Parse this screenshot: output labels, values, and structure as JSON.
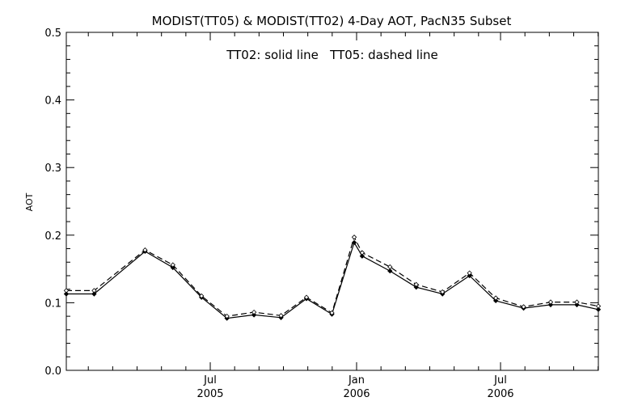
{
  "chart_data": {
    "type": "line",
    "title": "MODIST(TT05) & MODIST(TT02) 4-Day AOT, PacN35 Subset",
    "annotation": "TT02: solid line   TT05: dashed line",
    "ylabel": "AOT",
    "xlabel": "",
    "ylim": [
      0,
      0.5
    ],
    "yticks": [
      "0.0",
      "0.1",
      "0.2",
      "0.3",
      "0.4",
      "0.5"
    ],
    "xlim": [
      "2005-01-01",
      "2006-11-01"
    ],
    "xticks": [
      {
        "date": "2005-07-01",
        "label1": "Jul",
        "label2": "2005"
      },
      {
        "date": "2006-01-01",
        "label1": "Jan",
        "label2": "2006"
      },
      {
        "date": "2006-07-01",
        "label1": "Jul",
        "label2": "2006"
      }
    ],
    "grid": false,
    "series": [
      {
        "name": "TT02",
        "style": "solid",
        "x": [
          "2005-01-01",
          "2005-02-05",
          "2005-04-10",
          "2005-05-15",
          "2005-06-20",
          "2005-07-22",
          "2005-08-25",
          "2005-09-28",
          "2005-10-30",
          "2005-12-01",
          "2005-12-29",
          "2006-01-08",
          "2006-02-12",
          "2006-03-17",
          "2006-04-19",
          "2006-05-23",
          "2006-06-25",
          "2006-07-30",
          "2006-09-02",
          "2006-10-05",
          "2006-11-01"
        ],
        "values": [
          0.113,
          0.113,
          0.176,
          0.152,
          0.108,
          0.077,
          0.082,
          0.078,
          0.106,
          0.083,
          0.189,
          0.169,
          0.147,
          0.123,
          0.113,
          0.14,
          0.103,
          0.092,
          0.097,
          0.097,
          0.09
        ]
      },
      {
        "name": "TT05",
        "style": "dashed",
        "x": [
          "2005-01-01",
          "2005-02-05",
          "2005-04-10",
          "2005-05-15",
          "2005-06-20",
          "2005-07-22",
          "2005-08-25",
          "2005-09-28",
          "2005-10-30",
          "2005-12-01",
          "2005-12-29",
          "2006-01-08",
          "2006-02-12",
          "2006-03-17",
          "2006-04-19",
          "2006-05-23",
          "2006-06-25",
          "2006-07-30",
          "2006-09-02",
          "2006-10-05",
          "2006-11-01"
        ],
        "values": [
          0.118,
          0.118,
          0.178,
          0.156,
          0.11,
          0.08,
          0.086,
          0.081,
          0.108,
          0.085,
          0.197,
          0.174,
          0.153,
          0.127,
          0.116,
          0.144,
          0.107,
          0.094,
          0.101,
          0.101,
          0.095
        ]
      }
    ],
    "colors": {
      "line": "#000000",
      "background": "#ffffff"
    }
  }
}
